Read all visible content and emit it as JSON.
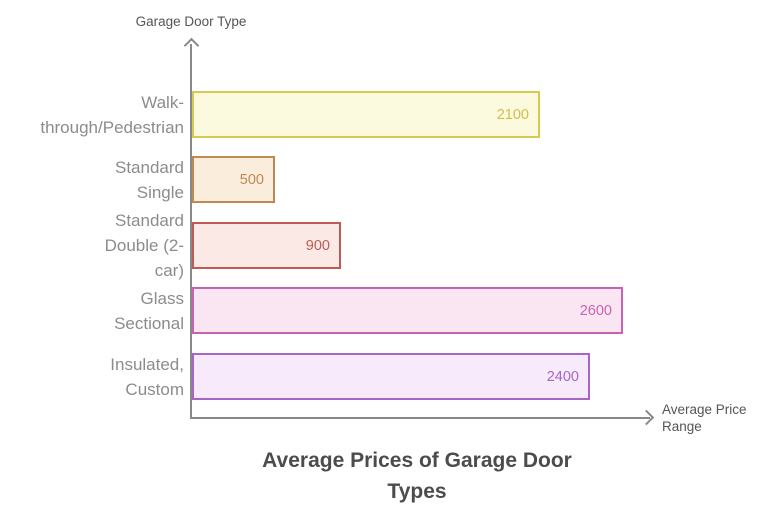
{
  "chart_data": {
    "type": "bar",
    "orientation": "horizontal",
    "title": "Average Prices of Garage Door Types",
    "title_display": "Average Prices of Garage Door\nTypes",
    "xlabel": "Average Price Range",
    "xlabel_display": "Average Price\nRange",
    "ylabel": "Garage Door Type",
    "categories": [
      "Walk-through/Pedestrian",
      "Standard Single",
      "Standard Double (2-car)",
      "Glass Sectional",
      "Insulated, Custom"
    ],
    "values": [
      2100,
      500,
      900,
      2600,
      2400
    ],
    "xlim": [
      0,
      2600
    ],
    "grid": false,
    "legend": false,
    "axis_color": "#888888",
    "category_label_color": "#8C8C8C",
    "axis_title_color": "#555555",
    "title_color": "#4C4C4C",
    "bars": [
      {
        "label": "Walk-through/Pedestrian",
        "label_display": "Walk-\nthrough/Pedestrian",
        "value": 2100,
        "fill": "#FCFADE",
        "border": "#D7CA50",
        "value_color": "#CEC04C"
      },
      {
        "label": "Standard Single",
        "label_display": "Standard\nSingle",
        "value": 500,
        "fill": "#FBEDDC",
        "border": "#BE8A52",
        "value_color": "#BE8A52"
      },
      {
        "label": "Standard Double (2-car)",
        "label_display": "Standard\nDouble (2-\ncar)",
        "value": 900,
        "fill": "#FBE9E6",
        "border": "#C05B54",
        "value_color": "#C05B54"
      },
      {
        "label": "Glass Sectional",
        "label_display": "Glass\nSectional",
        "value": 2600,
        "fill": "#FAE6F3",
        "border": "#C763B2",
        "value_color": "#C763B2"
      },
      {
        "label": "Insulated, Custom",
        "label_display": "Insulated,\nCustom",
        "value": 2400,
        "fill": "#F7EAFB",
        "border": "#A865C8",
        "value_color": "#A865C8"
      }
    ]
  }
}
